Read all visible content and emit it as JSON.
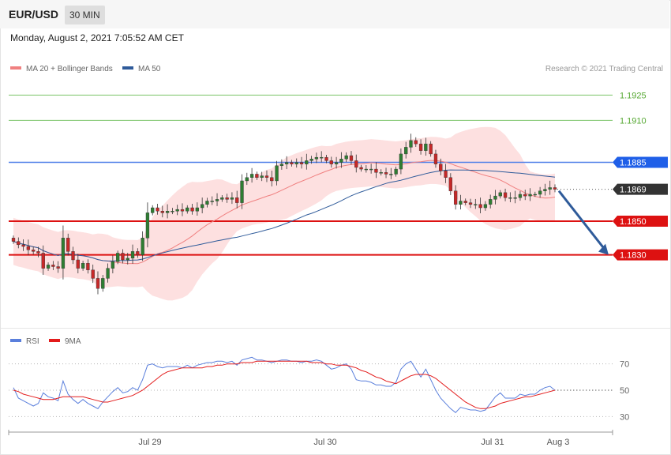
{
  "header": {
    "symbol": "EUR/USD",
    "timeframe": "30 MIN",
    "datetime": "Monday, August 2, 2021 7:05:52 AM CET"
  },
  "legend": {
    "ma20_label": "MA 20 + Bollinger Bands",
    "ma50_label": "MA 50",
    "copyright": "Research © 2021 Trading Central",
    "rsi_label": "RSI",
    "rsi_ma_label": "9MA"
  },
  "colors": {
    "bullish": "#2e7d32",
    "bearish": "#c62828",
    "ma20": "#f08080",
    "ma50": "#2f5b9a",
    "bollinger_fill": "#fde0e0",
    "resistance_green": "#7cc46a",
    "level_blue": "#4f7fe8",
    "level_red": "#dd1111",
    "current_price_bg": "#333333",
    "arrow": "#2f5b9a",
    "rsi": "#5a7fdc",
    "rsi_ma": "#e31b1b"
  },
  "chart_data": [
    {
      "type": "candlestick",
      "title": "EUR/USD 30 MIN",
      "ylim": [
        1.1788,
        1.1936
      ],
      "x_tick_labels": [
        "Jul 29",
        "Jul 30",
        "Jul 31",
        "Aug 3"
      ],
      "current_price": 1.1869,
      "levels": [
        {
          "value": 1.1925,
          "label": "1.1925",
          "kind": "resistance-green"
        },
        {
          "value": 1.191,
          "label": "1.1910",
          "kind": "resistance-green"
        },
        {
          "value": 1.1885,
          "label": "1.1885",
          "kind": "pivot-blue"
        },
        {
          "value": 1.1869,
          "label": "1.1869",
          "kind": "current"
        },
        {
          "value": 1.185,
          "label": "1.1850",
          "kind": "support-red"
        },
        {
          "value": 1.183,
          "label": "1.1830",
          "kind": "support-red"
        }
      ],
      "forecast_arrow": {
        "from": 1.1868,
        "to": 1.183
      },
      "closes": [
        1.1838,
        1.1836,
        1.1835,
        1.1833,
        1.1832,
        1.1831,
        1.1822,
        1.1824,
        1.1823,
        1.1822,
        1.184,
        1.1832,
        1.1827,
        1.1822,
        1.1825,
        1.1821,
        1.1816,
        1.181,
        1.1816,
        1.1822,
        1.1826,
        1.1831,
        1.1827,
        1.1828,
        1.1832,
        1.183,
        1.184,
        1.1855,
        1.1858,
        1.1856,
        1.1855,
        1.1856,
        1.1856,
        1.1857,
        1.1856,
        1.1858,
        1.1856,
        1.1858,
        1.186,
        1.1862,
        1.1862,
        1.1863,
        1.1864,
        1.1863,
        1.1864,
        1.1861,
        1.1874,
        1.1876,
        1.1878,
        1.1876,
        1.1877,
        1.1876,
        1.1874,
        1.1883,
        1.1884,
        1.1885,
        1.1884,
        1.1885,
        1.1884,
        1.1886,
        1.1887,
        1.1888,
        1.1888,
        1.1886,
        1.1884,
        1.1885,
        1.1887,
        1.1889,
        1.1886,
        1.1882,
        1.1881,
        1.1881,
        1.1881,
        1.1879,
        1.1879,
        1.1878,
        1.1878,
        1.1881,
        1.189,
        1.1894,
        1.1898,
        1.1896,
        1.1892,
        1.1896,
        1.189,
        1.1884,
        1.188,
        1.1876,
        1.1868,
        1.186,
        1.1862,
        1.1861,
        1.186,
        1.186,
        1.1858,
        1.186,
        1.1863,
        1.1865,
        1.1867,
        1.1864,
        1.1864,
        1.1864,
        1.1866,
        1.1865,
        1.1866,
        1.1866,
        1.1868,
        1.1869,
        1.187,
        1.1869
      ]
    },
    {
      "type": "line",
      "title": "RSI",
      "ylim": [
        20,
        80
      ],
      "y_ticks": [
        30,
        50,
        70
      ],
      "current_value": 50,
      "series": [
        {
          "name": "RSI",
          "values": [
            52,
            44,
            42,
            40,
            38,
            40,
            48,
            45,
            44,
            42,
            57,
            47,
            43,
            40,
            43,
            40,
            38,
            36,
            41,
            45,
            49,
            52,
            48,
            49,
            52,
            50,
            58,
            69,
            70,
            68,
            67,
            68,
            68,
            68,
            67,
            69,
            67,
            69,
            70,
            71,
            71,
            72,
            72,
            71,
            72,
            69,
            73,
            74,
            75,
            73,
            73,
            72,
            71,
            72,
            73,
            73,
            72,
            72,
            71,
            72,
            72,
            73,
            72,
            69,
            66,
            67,
            69,
            70,
            66,
            58,
            57,
            57,
            56,
            54,
            54,
            53,
            53,
            56,
            66,
            70,
            72,
            66,
            60,
            66,
            58,
            50,
            44,
            40,
            36,
            33,
            37,
            36,
            35,
            35,
            34,
            35,
            40,
            45,
            48,
            44,
            44,
            44,
            47,
            46,
            47,
            47,
            50,
            52,
            53,
            50
          ]
        },
        {
          "name": "9MA",
          "values": [
            50,
            49,
            47,
            46,
            45,
            44,
            43,
            43,
            43,
            44,
            45,
            45,
            45,
            45,
            45,
            44,
            43,
            42,
            41,
            41,
            42,
            43,
            44,
            45,
            46,
            48,
            50,
            53,
            56,
            59,
            62,
            64,
            65,
            66,
            67,
            67,
            67,
            67,
            67,
            68,
            68,
            69,
            69,
            70,
            70,
            70,
            71,
            71,
            71,
            72,
            72,
            72,
            72,
            72,
            72,
            72,
            72,
            72,
            72,
            72,
            71,
            71,
            71,
            70,
            70,
            69,
            69,
            69,
            68,
            67,
            65,
            64,
            62,
            60,
            59,
            57,
            56,
            55,
            57,
            59,
            61,
            62,
            62,
            62,
            61,
            59,
            56,
            53,
            50,
            47,
            44,
            41,
            39,
            37,
            36,
            36,
            37,
            38,
            40,
            41,
            42,
            43,
            44,
            45,
            45,
            46,
            47,
            48,
            49,
            50
          ]
        }
      ]
    }
  ]
}
